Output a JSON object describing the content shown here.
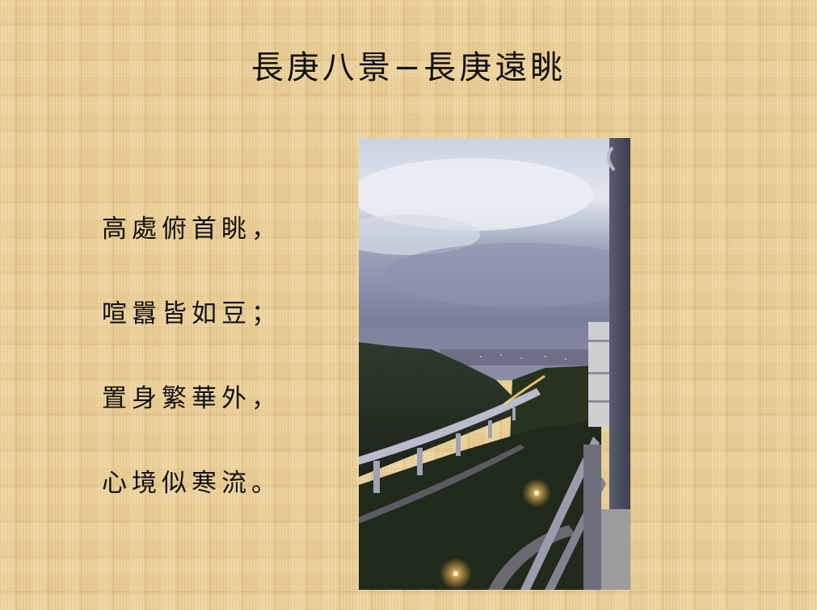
{
  "slide": {
    "title": "長庚八景−長庚遠眺",
    "poem_lines": [
      "高處俯首眺，",
      "喧囂皆如豆；",
      "置身繁華外，",
      "心境似寒流。"
    ]
  },
  "photo": {
    "subject": "dusk-view-from-balcony-over-valley-highway-icon"
  }
}
